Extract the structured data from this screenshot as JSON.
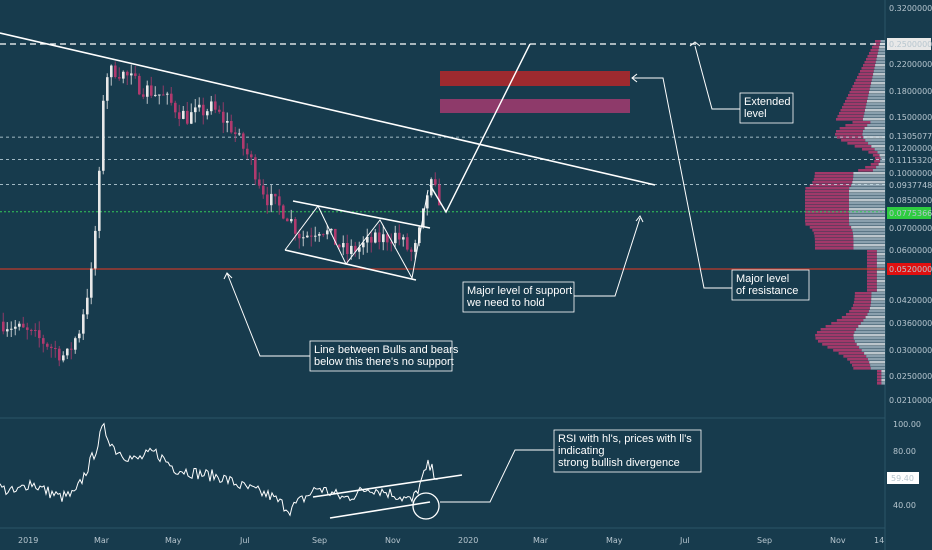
{
  "chart_data": {
    "type": "candlestick",
    "price_axis": {
      "scale": "log",
      "ticks": [
        "0.32000000",
        "0.25000000",
        "0.22000000",
        "0.18000000",
        "0.15000000",
        "0.13050778",
        "0.12000000",
        "0.11153202",
        "0.10000000",
        "0.09377484",
        "0.08500000",
        "0.07753664",
        "0.07000000",
        "0.06000000",
        "0.05200000",
        "0.04200000",
        "0.03600000",
        "0.03000000",
        "0.02500000",
        "0.02100000"
      ],
      "highlight_current": "0.07753664",
      "highlight_support": "0.05200000"
    },
    "rsi_axis": {
      "ticks": [
        "100.00",
        "80.00",
        "40.00"
      ],
      "current": "59.40"
    },
    "x_axis": {
      "ticks": [
        "2019",
        "Mar",
        "May",
        "Jul",
        "Sep",
        "Nov",
        "2020",
        "Mar",
        "May",
        "Jul",
        "Sep",
        "Nov",
        "14"
      ]
    },
    "horizontal_levels": [
      0.25,
      0.13050778,
      0.11153202,
      0.09377484,
      0.07753664,
      0.052
    ],
    "annotations": {
      "extended": [
        "Extended",
        "level"
      ],
      "resistance": [
        "Major level",
        "of resistance"
      ],
      "support": [
        "Major level of support",
        "we need to hold"
      ],
      "bulls_bears": [
        "Line between Bulls and bears",
        "below this there's no support"
      ],
      "rsi_note": [
        "RSI with hl's, prices with ll's",
        "indicating",
        "strong bullish divergence"
      ]
    },
    "colors": {
      "background": "#173b4d",
      "up": "#e8e8e8",
      "down": "#b03a6e",
      "resistance_zone": "#9e2a2f",
      "zone2": "#8e3a6a",
      "support_line": "#c0392b",
      "current_line": "#34c759",
      "current_label": "#2ecc40",
      "support_label": "#e01010"
    }
  }
}
